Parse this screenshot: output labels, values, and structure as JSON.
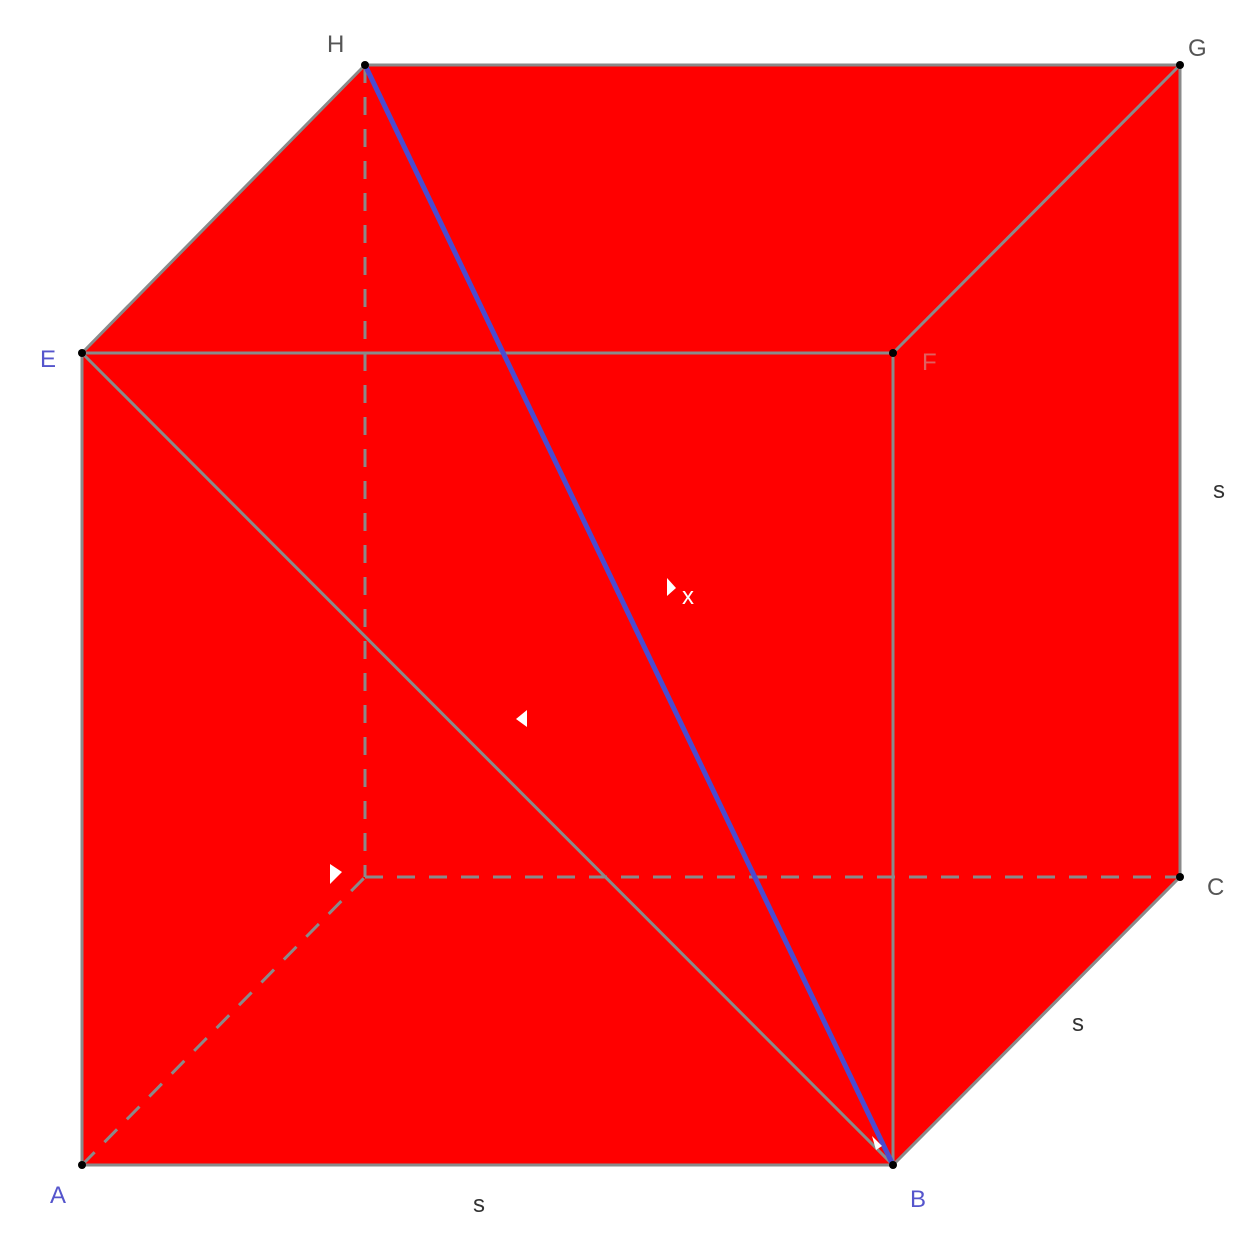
{
  "diagram": {
    "vertices": {
      "A": "A",
      "B": "B",
      "C": "C",
      "D": "",
      "E": "E",
      "F": "F",
      "G": "G",
      "H": "H"
    },
    "side_labels": {
      "bottom": "s",
      "depth": "s",
      "right": "s"
    },
    "diagonal_labels": {
      "space_diagonal": "x",
      "face_diagonal": ""
    },
    "colors": {
      "face_fill": "#ff0000",
      "edge": "#8a8a8a",
      "space_diagonal": "#4b4bd0",
      "vertex_label": "#5555cc",
      "side_label": "#333333",
      "point": "#000000"
    }
  }
}
